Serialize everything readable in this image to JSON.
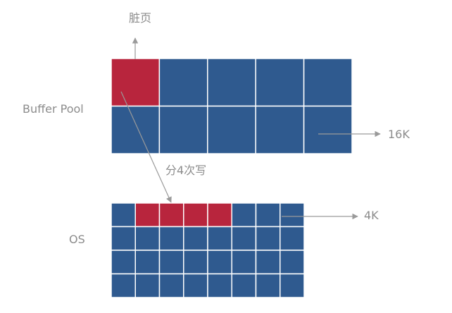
{
  "labels": {
    "dirty_page": "脏页",
    "buffer_pool": "Buffer Pool",
    "page_size_16k": "16K",
    "write_in_4": "分4次写",
    "os_page_size_4k": "4K",
    "os": "OS"
  },
  "buffer_pool": {
    "rows": 2,
    "cols": 5,
    "dirty_cells": [
      [
        0,
        0
      ]
    ]
  },
  "os": {
    "rows": 4,
    "cols": 8,
    "dirty_cells": [
      [
        0,
        1
      ],
      [
        0,
        2
      ],
      [
        0,
        3
      ],
      [
        0,
        4
      ]
    ]
  },
  "colors": {
    "cell": "#2f5a8f",
    "dirty": "#b8253d",
    "grid_line": "#ffffff",
    "arrow": "#9a9a9a",
    "text": "#8c8c8c"
  }
}
